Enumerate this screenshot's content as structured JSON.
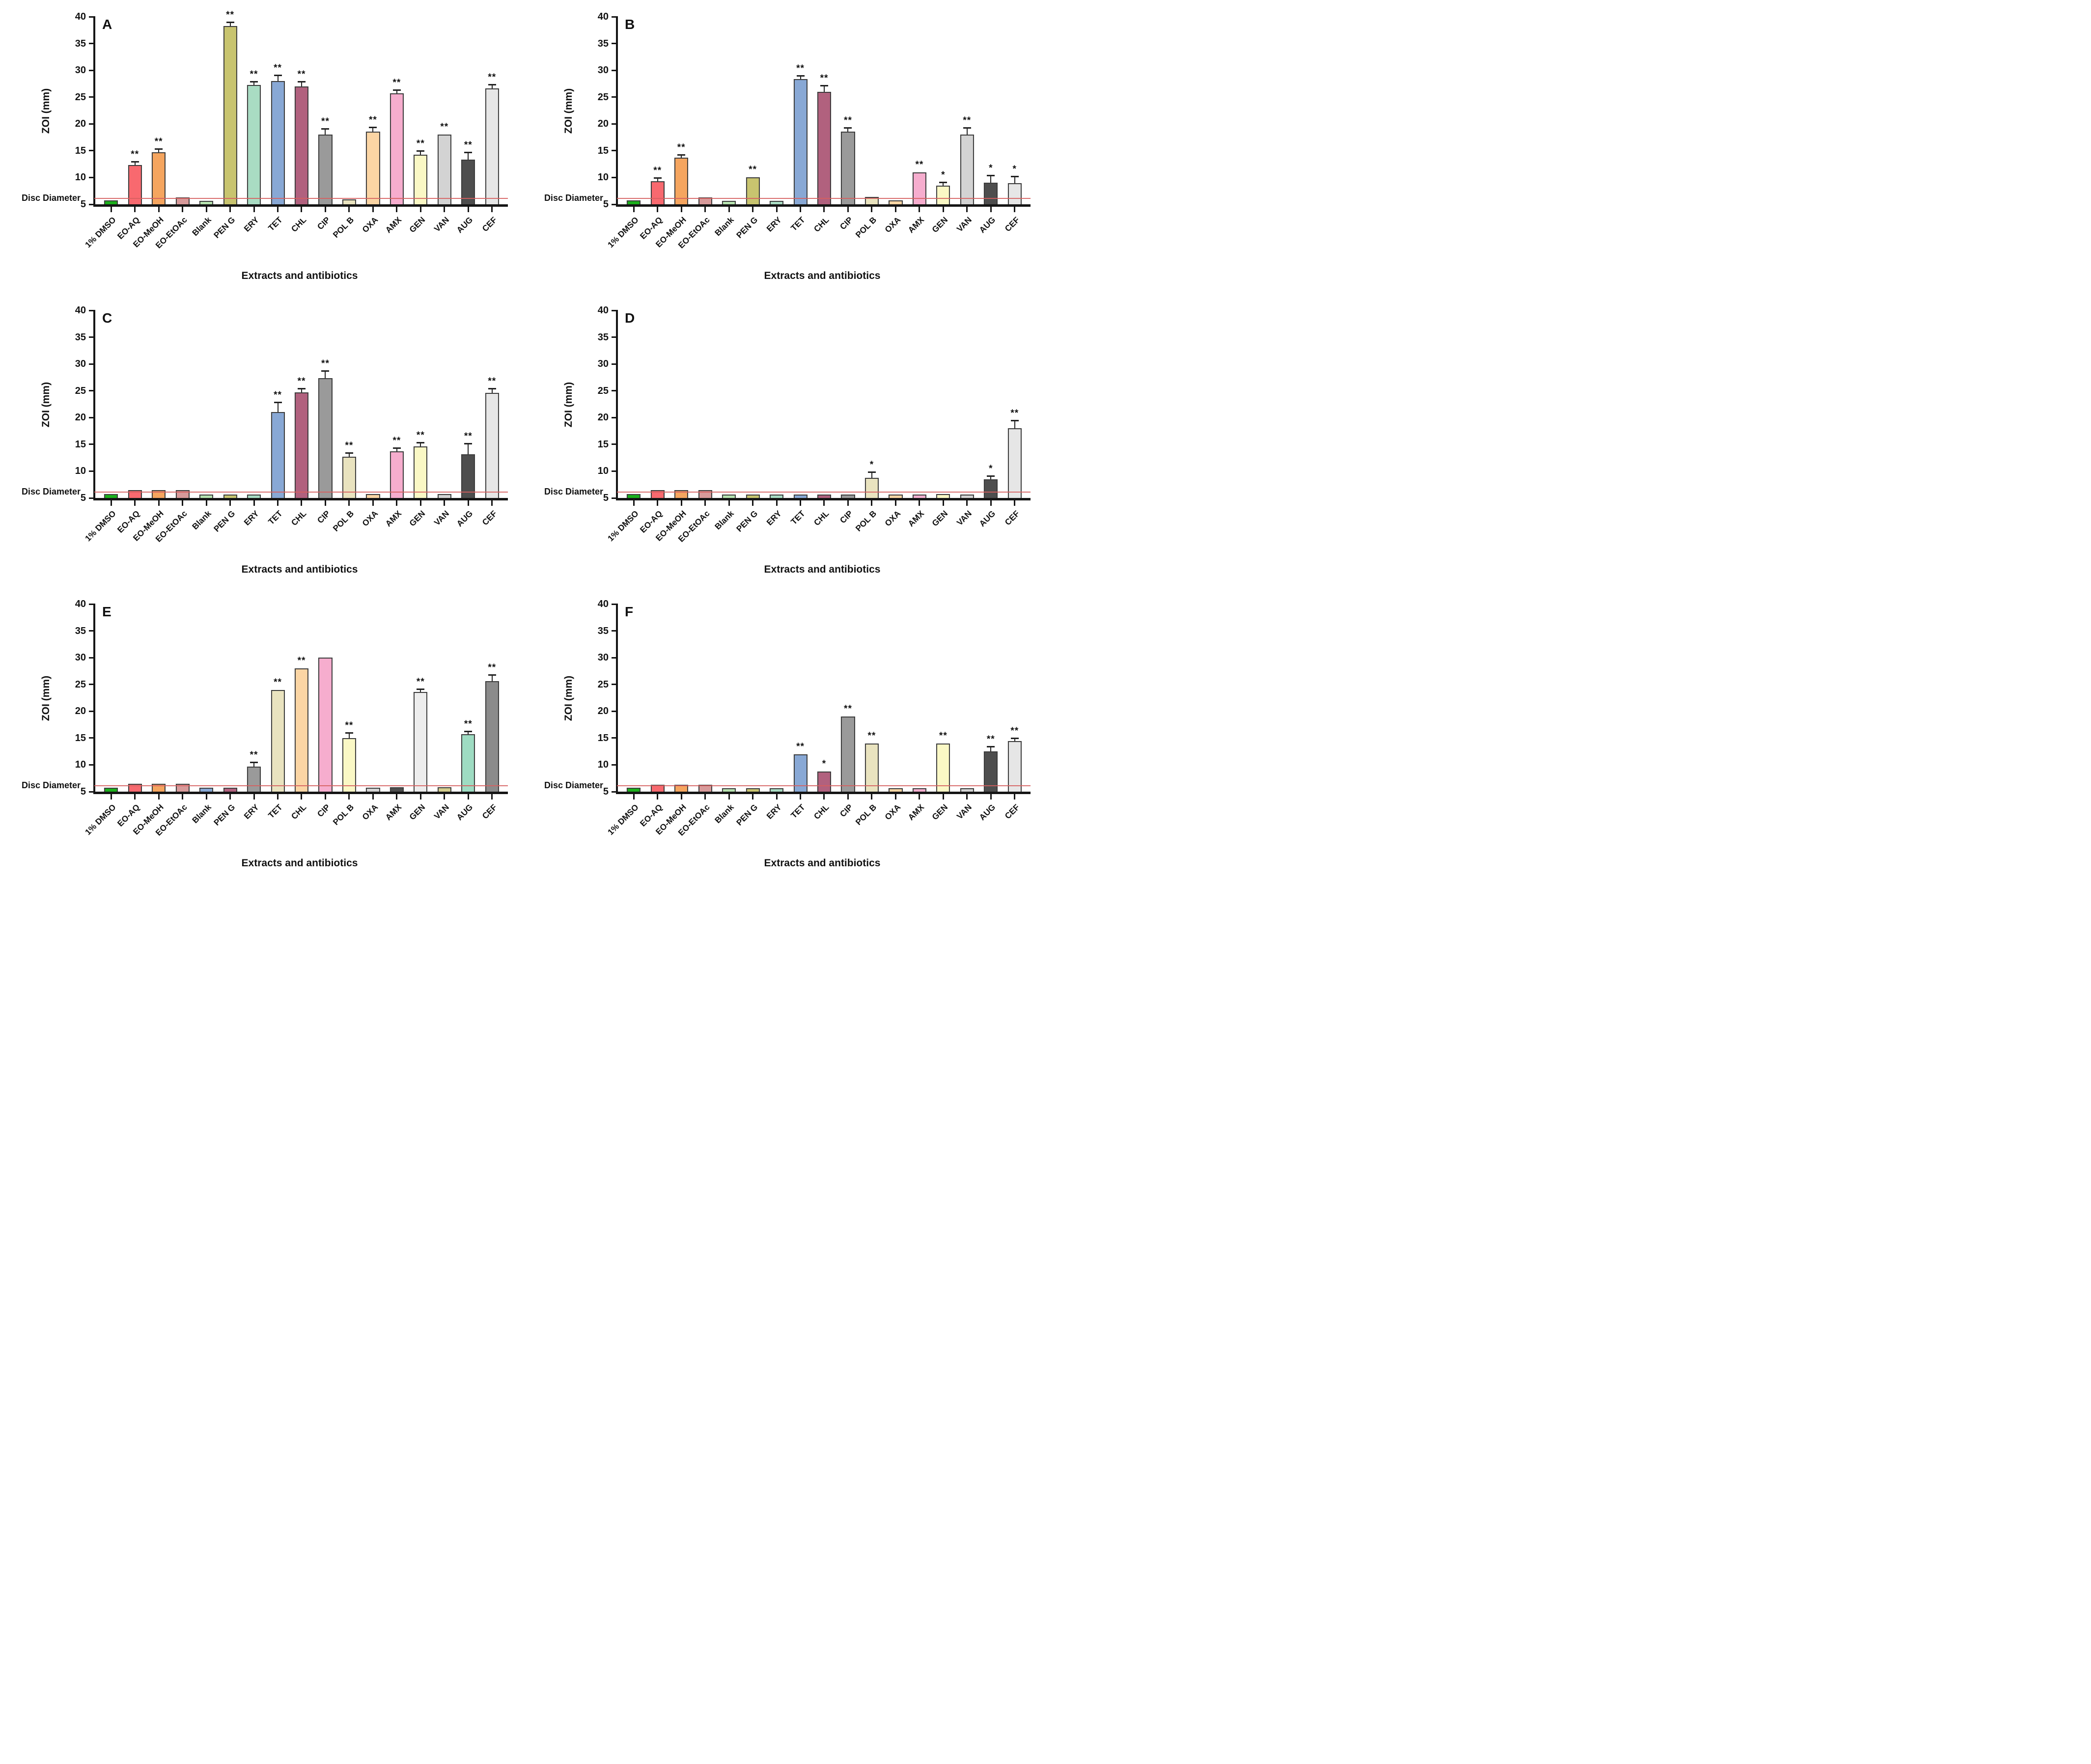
{
  "figure": {
    "ylabel": "ZOI (mm)",
    "xlabel": "Extracts and antibiotics",
    "disc_diameter_label": "Disc Diameter",
    "y_ticks": [
      40,
      35,
      30,
      25,
      20,
      15,
      10,
      5
    ],
    "ylim": [
      5,
      40
    ],
    "reference_line_value": 6,
    "reference_line_color": "#d65f5f",
    "grid": "off",
    "legend": "none"
  },
  "chart_data": [
    {
      "panel_label": "A",
      "type": "bar",
      "categories": [
        "1% DMSO",
        "EO-AQ",
        "EO-MeOH",
        "EO-EtOAc",
        "Blank",
        "PEN G",
        "ERY",
        "TET",
        "CHL",
        "CIP",
        "POL B",
        "OXA",
        "AMX",
        "GEN",
        "VAN",
        "AUG",
        "CEF"
      ],
      "values": [
        5.7,
        12.3,
        14.7,
        6.3,
        5.6,
        38.3,
        27.3,
        28.0,
        27.0,
        18.0,
        5.9,
        18.6,
        25.7,
        14.3,
        18.0,
        13.3,
        26.6
      ],
      "errors": [
        0,
        0.6,
        0.6,
        0,
        0,
        0.6,
        0.5,
        1.0,
        0.8,
        1.0,
        0,
        0.7,
        0.6,
        0.6,
        0,
        1.3,
        0.7
      ],
      "significance": [
        "",
        "**",
        "**",
        "",
        "",
        "**",
        "**",
        "**",
        "**",
        "**",
        "",
        "**",
        "**",
        "**",
        "**",
        "**",
        "**"
      ],
      "colors": [
        "#1cb01c",
        "#f8696f",
        "#f5a55f",
        "#d79a9a",
        "#b6e2af",
        "#c8c46f",
        "#a9dcc3",
        "#88a8d5",
        "#b1617e",
        "#9a9a9a",
        "#e9e3bf",
        "#fbd5a4",
        "#f6adce",
        "#faf8c5",
        "#d3d3d3",
        "#4e4e4e",
        "#e6e6e6"
      ]
    },
    {
      "panel_label": "B",
      "type": "bar",
      "categories": [
        "1% DMSO",
        "EO-AQ",
        "EO-MeOH",
        "EO-EtOAc",
        "Blank",
        "PEN G",
        "ERY",
        "TET",
        "CHL",
        "CIP",
        "POL B",
        "OXA",
        "AMX",
        "GEN",
        "VAN",
        "AUG",
        "CEF"
      ],
      "values": [
        5.7,
        9.3,
        13.7,
        6.3,
        5.6,
        10.0,
        5.6,
        28.4,
        26.0,
        18.6,
        6.4,
        5.7,
        11.0,
        8.5,
        18.0,
        9.0,
        8.9
      ],
      "errors": [
        0,
        0.6,
        0.5,
        0,
        0,
        0,
        0,
        0.5,
        1.1,
        0.6,
        0,
        0,
        0,
        0.5,
        1.2,
        1.3,
        1.2
      ],
      "significance": [
        "",
        "**",
        "**",
        "",
        "",
        "**",
        "",
        "**",
        "**",
        "**",
        "",
        "",
        "**",
        "*",
        "**",
        "*",
        "*"
      ],
      "colors": [
        "#1cb01c",
        "#f8696f",
        "#f5a55f",
        "#d79a9a",
        "#b6e2af",
        "#c8c46f",
        "#a9dcc3",
        "#88a8d5",
        "#b1617e",
        "#9a9a9a",
        "#e9e3bf",
        "#fbd5a4",
        "#f6adce",
        "#faf8c5",
        "#d3d3d3",
        "#4e4e4e",
        "#e6e6e6"
      ]
    },
    {
      "panel_label": "C",
      "type": "bar",
      "categories": [
        "1% DMSO",
        "EO-AQ",
        "EO-MeOH",
        "EO-EtOAc",
        "Blank",
        "PEN G",
        "ERY",
        "TET",
        "CHL",
        "CIP",
        "POL B",
        "OXA",
        "AMX",
        "GEN",
        "VAN",
        "AUG",
        "CEF"
      ],
      "values": [
        5.7,
        6.5,
        6.5,
        6.5,
        5.6,
        5.6,
        5.6,
        21.0,
        24.7,
        27.4,
        12.7,
        5.7,
        13.7,
        14.6,
        5.7,
        13.2,
        24.6
      ],
      "errors": [
        0,
        0,
        0,
        0,
        0,
        0,
        0,
        1.8,
        0.6,
        1.2,
        0.6,
        0,
        0.6,
        0.7,
        0,
        1.9,
        0.7
      ],
      "significance": [
        "",
        "",
        "",
        "",
        "",
        "",
        "",
        "**",
        "**",
        "**",
        "**",
        "",
        "**",
        "**",
        "",
        "**",
        "**"
      ],
      "colors": [
        "#1cb01c",
        "#f8696f",
        "#f5a55f",
        "#d79a9a",
        "#b6e2af",
        "#c8c46f",
        "#a9dcc3",
        "#88a8d5",
        "#b1617e",
        "#9a9a9a",
        "#e9e3bf",
        "#fbd5a4",
        "#f6adce",
        "#faf8c5",
        "#d3d3d3",
        "#4e4e4e",
        "#e6e6e6"
      ]
    },
    {
      "panel_label": "D",
      "type": "bar",
      "categories": [
        "1% DMSO",
        "EO-AQ",
        "EO-MeOH",
        "EO-EtOAc",
        "Blank",
        "PEN G",
        "ERY",
        "TET",
        "CHL",
        "CIP",
        "POL B",
        "OXA",
        "AMX",
        "GEN",
        "VAN",
        "AUG",
        "CEF"
      ],
      "values": [
        5.7,
        6.5,
        6.5,
        6.5,
        5.6,
        5.6,
        5.6,
        5.6,
        5.6,
        5.6,
        8.8,
        5.6,
        5.6,
        5.7,
        5.6,
        8.5,
        18.0
      ],
      "errors": [
        0,
        0,
        0,
        0,
        0,
        0,
        0,
        0,
        0,
        0,
        1.0,
        0,
        0,
        0,
        0,
        0.5,
        1.4
      ],
      "significance": [
        "",
        "",
        "",
        "",
        "",
        "",
        "",
        "",
        "",
        "",
        "*",
        "",
        "",
        "",
        "",
        "*",
        "**"
      ],
      "colors": [
        "#1cb01c",
        "#f8696f",
        "#f5a55f",
        "#d79a9a",
        "#b6e2af",
        "#c8c46f",
        "#a9dcc3",
        "#88a8d5",
        "#b1617e",
        "#9a9a9a",
        "#e9e3bf",
        "#fbd5a4",
        "#f6adce",
        "#faf8c5",
        "#d3d3d3",
        "#4e4e4e",
        "#e6e6e6"
      ]
    },
    {
      "panel_label": "E",
      "type": "bar",
      "categories": [
        "1% DMSO",
        "EO-AQ",
        "EO-MeOH",
        "EO-EtOAc",
        "Blank",
        "PEN G",
        "ERY",
        "TET",
        "CHL",
        "CIP",
        "POL B",
        "OXA",
        "AMX",
        "GEN",
        "VAN",
        "AUG",
        "CEF"
      ],
      "values": [
        5.7,
        6.5,
        6.5,
        6.5,
        5.7,
        5.7,
        9.7,
        24.0,
        28.0,
        30.0,
        15.0,
        5.7,
        5.8,
        23.6,
        5.8,
        15.7,
        25.6
      ],
      "errors": [
        0,
        0,
        0,
        0,
        0,
        0,
        0.7,
        0,
        0,
        0,
        0.9,
        0,
        0,
        0.5,
        0,
        0.5,
        1.1
      ],
      "significance": [
        "",
        "",
        "",
        "",
        "",
        "",
        "**",
        "**",
        "**",
        "",
        "**",
        "",
        "",
        "**",
        "",
        "**",
        "**"
      ],
      "colors": [
        "#1cb01c",
        "#f8696f",
        "#f5a55f",
        "#d79a9a",
        "#88a8d5",
        "#b1617e",
        "#9a9a9a",
        "#e9e3bf",
        "#fbd5a4",
        "#f6adce",
        "#faf8c5",
        "#d3d3d3",
        "#4e4e4e",
        "#ededed",
        "#d3cd8d",
        "#9edcc2",
        "#8b8b8b"
      ]
    },
    {
      "panel_label": "F",
      "type": "bar",
      "categories": [
        "1% DMSO",
        "EO-AQ",
        "EO-MeOH",
        "EO-EtOAc",
        "Blank",
        "PEN G",
        "ERY",
        "TET",
        "CHL",
        "CIP",
        "POL B",
        "OXA",
        "AMX",
        "GEN",
        "VAN",
        "AUG",
        "CEF"
      ],
      "values": [
        5.7,
        6.3,
        6.3,
        6.3,
        5.6,
        5.6,
        5.6,
        12.0,
        8.8,
        19.0,
        14.0,
        5.6,
        5.6,
        14.0,
        5.6,
        12.5,
        14.4
      ],
      "errors": [
        0,
        0,
        0,
        0,
        0,
        0,
        0,
        0,
        0,
        0,
        0,
        0,
        0,
        0,
        0,
        0.8,
        0.5
      ],
      "significance": [
        "",
        "",
        "",
        "",
        "",
        "",
        "",
        "**",
        "*",
        "**",
        "**",
        "",
        "",
        "**",
        "",
        "**",
        "**"
      ],
      "colors": [
        "#1cb01c",
        "#f8696f",
        "#f5a55f",
        "#d79a9a",
        "#b6e2af",
        "#c8c46f",
        "#a9dcc3",
        "#88a8d5",
        "#b1617e",
        "#9a9a9a",
        "#e9e3bf",
        "#fbd5a4",
        "#f6adce",
        "#faf8c5",
        "#d3d3d3",
        "#4e4e4e",
        "#e6e6e6"
      ]
    }
  ]
}
